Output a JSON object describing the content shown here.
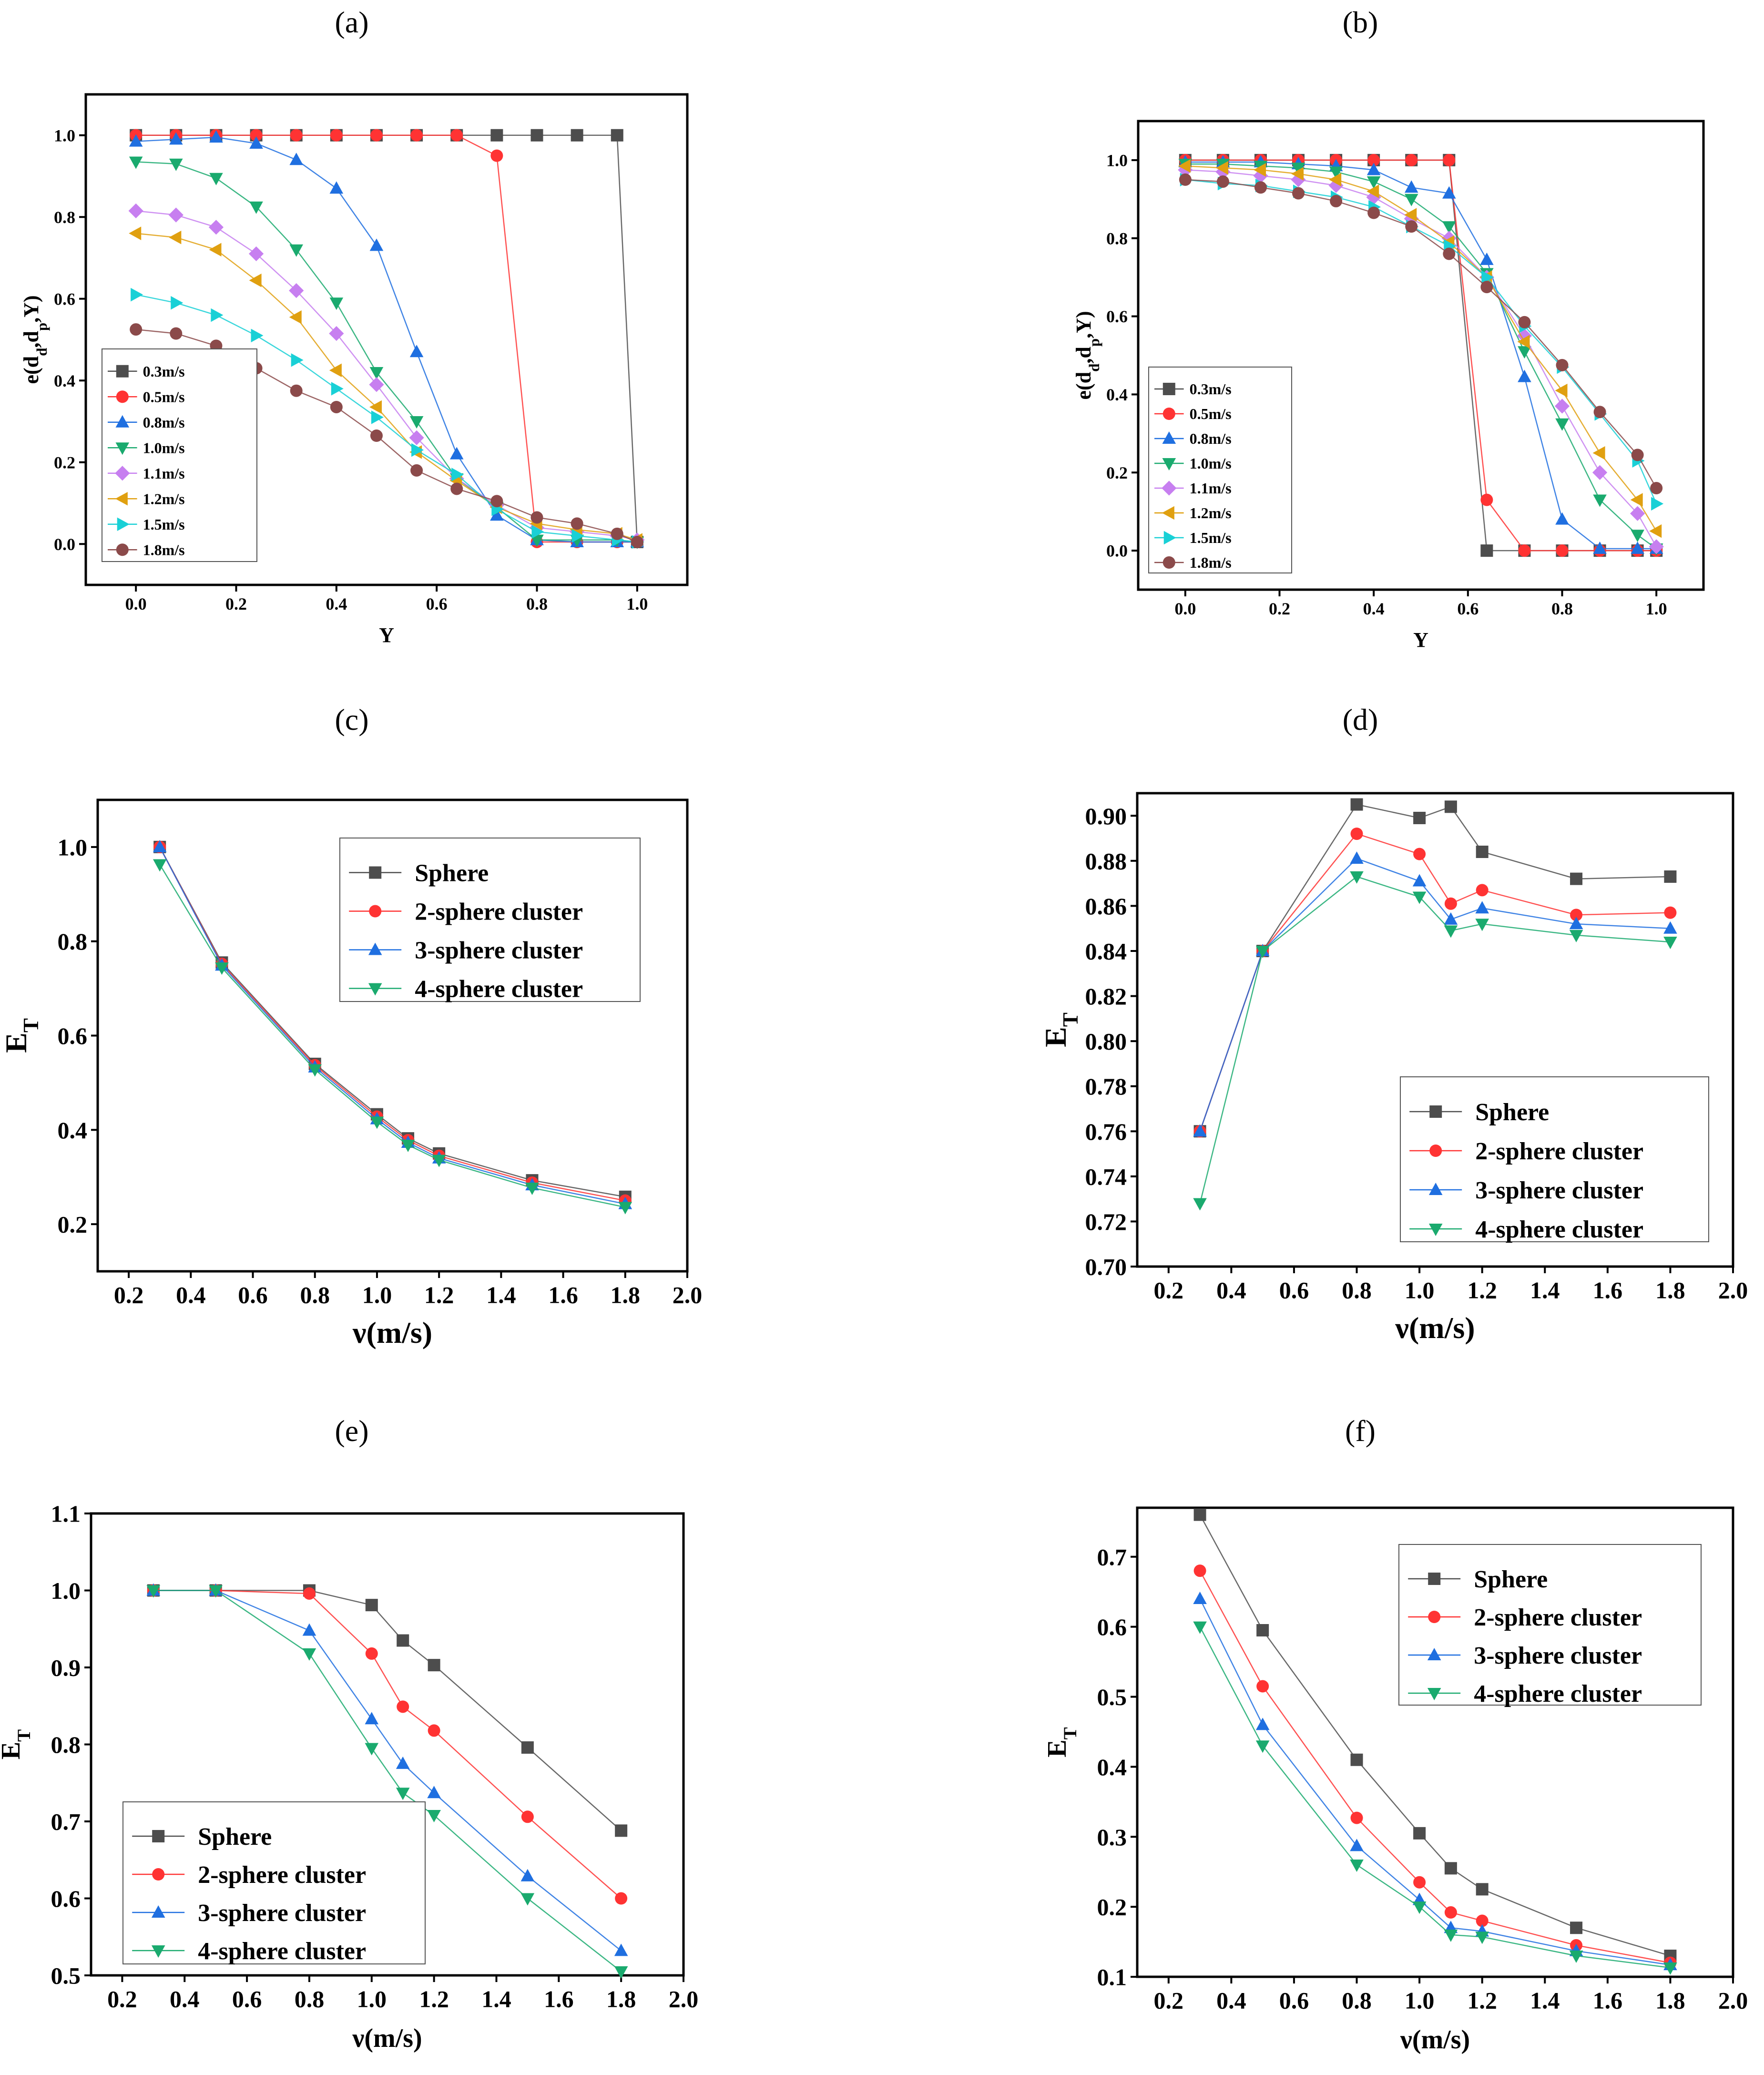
{
  "chart_data": [
    {
      "panel": "(a)",
      "type": "line",
      "xlabel": "Y",
      "ylabel": "e(d_d,d_p,Y)",
      "xlim": [
        -0.1,
        1.1
      ],
      "ylim": [
        -0.1,
        1.1
      ],
      "xticks": [
        "0.0",
        "0.2",
        "0.4",
        "0.6",
        "0.8",
        "1.0"
      ],
      "yticks": [
        "0.0",
        "0.2",
        "0.4",
        "0.6",
        "0.8",
        "1.0"
      ],
      "legend_position": "bottom-left",
      "x": [
        0,
        0.08,
        0.16,
        0.24,
        0.32,
        0.4,
        0.48,
        0.56,
        0.64,
        0.72,
        0.8,
        0.88,
        0.96,
        1.0
      ],
      "series": [
        {
          "name": "0.3m/s",
          "color": "#4d4d4d",
          "marker": "square",
          "values": [
            1,
            1,
            1,
            1,
            1,
            1,
            1,
            1,
            1,
            1,
            1,
            1,
            1,
            0.005
          ]
        },
        {
          "name": "0.5m/s",
          "color": "#ff3333",
          "marker": "circle",
          "values": [
            1,
            1,
            1,
            1,
            1,
            1,
            1,
            1,
            1,
            0.95,
            0.005,
            0.005,
            0.005,
            0.005
          ]
        },
        {
          "name": "0.8m/s",
          "color": "#1f6fe0",
          "marker": "triangle-up",
          "values": [
            0.985,
            0.99,
            0.995,
            0.98,
            0.94,
            0.87,
            0.73,
            0.47,
            0.22,
            0.07,
            0.01,
            0.005,
            0.005,
            0.005
          ]
        },
        {
          "name": "1.0m/s",
          "color": "#1aaa6e",
          "marker": "triangle-down",
          "values": [
            0.935,
            0.93,
            0.895,
            0.825,
            0.72,
            0.59,
            0.42,
            0.3,
            0.16,
            0.09,
            0.01,
            0.01,
            0.01,
            0.005
          ]
        },
        {
          "name": "1.1m/s",
          "color": "#c77ff0",
          "marker": "diamond",
          "values": [
            0.815,
            0.805,
            0.775,
            0.71,
            0.62,
            0.515,
            0.39,
            0.26,
            0.16,
            0.095,
            0.04,
            0.03,
            0.02,
            0.01
          ]
        },
        {
          "name": "1.2m/s",
          "color": "#e0a010",
          "marker": "triangle-left",
          "values": [
            0.76,
            0.75,
            0.72,
            0.645,
            0.555,
            0.425,
            0.335,
            0.225,
            0.155,
            0.09,
            0.05,
            0.035,
            0.025,
            0.01
          ]
        },
        {
          "name": "1.5m/s",
          "color": "#19d0d6",
          "marker": "triangle-right",
          "values": [
            0.61,
            0.59,
            0.56,
            0.51,
            0.45,
            0.38,
            0.31,
            0.23,
            0.17,
            0.085,
            0.03,
            0.02,
            0.01,
            0.005
          ]
        },
        {
          "name": "1.8m/s",
          "color": "#8b4a4a",
          "marker": "circle",
          "values": [
            0.525,
            0.515,
            0.485,
            0.43,
            0.375,
            0.335,
            0.265,
            0.18,
            0.135,
            0.105,
            0.065,
            0.05,
            0.025,
            0.005
          ]
        }
      ]
    },
    {
      "panel": "(b)",
      "type": "line",
      "xlabel": "Y",
      "ylabel": "e(d_d,d_p,Y)",
      "xlim": [
        -0.1,
        1.1
      ],
      "ylim": [
        -0.1,
        1.1
      ],
      "xticks": [
        "0.0",
        "0.2",
        "0.4",
        "0.6",
        "0.8",
        "1.0"
      ],
      "yticks": [
        "0.0",
        "0.2",
        "0.4",
        "0.6",
        "0.8",
        "1.0"
      ],
      "legend_position": "bottom-left",
      "x": [
        0,
        0.08,
        0.16,
        0.24,
        0.32,
        0.4,
        0.48,
        0.56,
        0.64,
        0.72,
        0.8,
        0.88,
        0.96,
        1.0
      ],
      "series": [
        {
          "name": "0.3m/s",
          "color": "#4d4d4d",
          "marker": "square",
          "values": [
            1,
            1,
            1,
            1,
            1,
            1,
            1,
            1,
            0,
            0,
            0,
            0,
            0,
            0
          ]
        },
        {
          "name": "0.5m/s",
          "color": "#ff3333",
          "marker": "circle",
          "values": [
            1,
            1,
            1,
            1,
            1,
            1,
            1,
            1,
            0.13,
            0,
            0,
            0,
            0,
            0
          ]
        },
        {
          "name": "0.8m/s",
          "color": "#1f6fe0",
          "marker": "triangle-up",
          "values": [
            0.995,
            0.995,
            0.995,
            0.99,
            0.985,
            0.975,
            0.93,
            0.915,
            0.745,
            0.445,
            0.08,
            0.005,
            0.005,
            0.005
          ]
        },
        {
          "name": "1.0m/s",
          "color": "#1aaa6e",
          "marker": "triangle-down",
          "values": [
            0.99,
            0.99,
            0.985,
            0.98,
            0.97,
            0.945,
            0.9,
            0.83,
            0.71,
            0.51,
            0.325,
            0.13,
            0.04,
            0.005
          ]
        },
        {
          "name": "1.1m/s",
          "color": "#c77ff0",
          "marker": "diamond",
          "values": [
            0.975,
            0.97,
            0.96,
            0.95,
            0.935,
            0.905,
            0.85,
            0.8,
            0.7,
            0.55,
            0.37,
            0.2,
            0.095,
            0.01
          ]
        },
        {
          "name": "1.2m/s",
          "color": "#e0a010",
          "marker": "triangle-left",
          "values": [
            0.985,
            0.98,
            0.975,
            0.965,
            0.95,
            0.92,
            0.86,
            0.79,
            0.7,
            0.535,
            0.41,
            0.25,
            0.13,
            0.05
          ]
        },
        {
          "name": "1.5m/s",
          "color": "#19d0d6",
          "marker": "triangle-right",
          "values": [
            0.95,
            0.94,
            0.935,
            0.92,
            0.905,
            0.88,
            0.83,
            0.78,
            0.7,
            0.575,
            0.47,
            0.35,
            0.23,
            0.12
          ]
        },
        {
          "name": "1.8m/s",
          "color": "#8b4a4a",
          "marker": "circle",
          "values": [
            0.95,
            0.945,
            0.93,
            0.915,
            0.895,
            0.865,
            0.83,
            0.76,
            0.675,
            0.585,
            0.475,
            0.355,
            0.245,
            0.16
          ]
        }
      ]
    },
    {
      "panel": "(c)",
      "type": "line",
      "xlabel": "ν(m/s)",
      "ylabel": "E_T",
      "xlim": [
        0.1,
        2.0
      ],
      "ylim": [
        0.1,
        1.1
      ],
      "xticks": [
        "0.2",
        "0.4",
        "0.6",
        "0.8",
        "1.0",
        "1.2",
        "1.4",
        "1.6",
        "1.8",
        "2.0"
      ],
      "yticks": [
        "0.2",
        "0.4",
        "0.6",
        "0.8",
        "1.0"
      ],
      "legend_position": "top-right",
      "x": [
        0.3,
        0.5,
        0.8,
        1.0,
        1.1,
        1.2,
        1.5,
        1.8
      ],
      "series": [
        {
          "name": "Sphere",
          "color": "#4d4d4d",
          "marker": "square",
          "values": [
            1.0,
            0.755,
            0.54,
            0.433,
            0.382,
            0.35,
            0.293,
            0.258
          ]
        },
        {
          "name": "2-sphere cluster",
          "color": "#ff3333",
          "marker": "circle",
          "values": [
            1.0,
            0.752,
            0.537,
            0.428,
            0.378,
            0.345,
            0.288,
            0.25
          ]
        },
        {
          "name": "3-sphere cluster",
          "color": "#1f6fe0",
          "marker": "triangle-up",
          "values": [
            1.0,
            0.749,
            0.533,
            0.423,
            0.373,
            0.34,
            0.283,
            0.243
          ]
        },
        {
          "name": "4-sphere cluster",
          "color": "#1aaa6e",
          "marker": "triangle-down",
          "values": [
            0.963,
            0.744,
            0.528,
            0.417,
            0.368,
            0.336,
            0.277,
            0.236
          ]
        }
      ]
    },
    {
      "panel": "(d)",
      "type": "line",
      "xlabel": "ν(m/s)",
      "ylabel": "E_T",
      "xlim": [
        0.1,
        2.0
      ],
      "ylim": [
        0.7,
        0.91
      ],
      "xticks": [
        "0.2",
        "0.4",
        "0.6",
        "0.8",
        "1.0",
        "1.2",
        "1.4",
        "1.6",
        "1.8",
        "2.0"
      ],
      "yticks": [
        "0.70",
        "0.72",
        "0.74",
        "0.76",
        "0.78",
        "0.80",
        "0.82",
        "0.84",
        "0.86",
        "0.88",
        "0.90"
      ],
      "legend_position": "bottom-right",
      "x": [
        0.3,
        0.5,
        0.8,
        1.0,
        1.1,
        1.2,
        1.5,
        1.8
      ],
      "series": [
        {
          "name": "Sphere",
          "color": "#4d4d4d",
          "marker": "square",
          "values": [
            0.76,
            0.84,
            0.905,
            0.899,
            0.904,
            0.884,
            0.872,
            0.873
          ]
        },
        {
          "name": "2-sphere cluster",
          "color": "#ff3333",
          "marker": "circle",
          "values": [
            0.76,
            0.84,
            0.892,
            0.883,
            0.861,
            0.867,
            0.856,
            0.857
          ]
        },
        {
          "name": "3-sphere cluster",
          "color": "#1f6fe0",
          "marker": "triangle-up",
          "values": [
            0.76,
            0.84,
            0.881,
            0.871,
            0.854,
            0.859,
            0.852,
            0.85
          ]
        },
        {
          "name": "4-sphere cluster",
          "color": "#1aaa6e",
          "marker": "triangle-down",
          "values": [
            0.728,
            0.84,
            0.873,
            0.864,
            0.849,
            0.852,
            0.847,
            0.844
          ]
        }
      ]
    },
    {
      "panel": "(e)",
      "type": "line",
      "xlabel": "ν(m/s)",
      "ylabel": "E_T",
      "xlim": [
        0.1,
        2.0
      ],
      "ylim": [
        0.5,
        1.1
      ],
      "xticks": [
        "0.2",
        "0.4",
        "0.6",
        "0.8",
        "1.0",
        "1.2",
        "1.4",
        "1.6",
        "1.8",
        "2.0"
      ],
      "yticks": [
        "0.5",
        "0.6",
        "0.7",
        "0.8",
        "0.9",
        "1.0",
        "1.1"
      ],
      "legend_position": "bottom-left",
      "x": [
        0.3,
        0.5,
        0.8,
        1.0,
        1.1,
        1.2,
        1.5,
        1.8
      ],
      "series": [
        {
          "name": "Sphere",
          "color": "#4d4d4d",
          "marker": "square",
          "values": [
            1.0,
            1.0,
            1.0,
            0.981,
            0.935,
            0.903,
            0.796,
            0.688
          ]
        },
        {
          "name": "2-sphere cluster",
          "color": "#ff3333",
          "marker": "circle",
          "values": [
            1.0,
            1.0,
            0.996,
            0.918,
            0.849,
            0.818,
            0.706,
            0.6
          ]
        },
        {
          "name": "3-sphere cluster",
          "color": "#1f6fe0",
          "marker": "triangle-up",
          "values": [
            1.0,
            1.0,
            0.948,
            0.833,
            0.775,
            0.737,
            0.629,
            0.532
          ]
        },
        {
          "name": "4-sphere cluster",
          "color": "#1aaa6e",
          "marker": "triangle-down",
          "values": [
            1.0,
            1.0,
            0.918,
            0.795,
            0.737,
            0.708,
            0.6,
            0.505
          ]
        }
      ]
    },
    {
      "panel": "(f)",
      "type": "line",
      "xlabel": "ν(m/s)",
      "ylabel": "E_T",
      "xlim": [
        0.1,
        2.0
      ],
      "ylim": [
        0.1,
        0.77
      ],
      "xticks": [
        "0.2",
        "0.4",
        "0.6",
        "0.8",
        "1.0",
        "1.2",
        "1.4",
        "1.6",
        "1.8",
        "2.0"
      ],
      "yticks": [
        "0.1",
        "0.2",
        "0.3",
        "0.4",
        "0.5",
        "0.6",
        "0.7"
      ],
      "legend_position": "top-right",
      "x": [
        0.3,
        0.5,
        0.8,
        1.0,
        1.1,
        1.2,
        1.5,
        1.8
      ],
      "series": [
        {
          "name": "Sphere",
          "color": "#4d4d4d",
          "marker": "square",
          "values": [
            0.76,
            0.595,
            0.41,
            0.305,
            0.255,
            0.225,
            0.17,
            0.13
          ]
        },
        {
          "name": "2-sphere cluster",
          "color": "#ff3333",
          "marker": "circle",
          "values": [
            0.68,
            0.515,
            0.327,
            0.235,
            0.192,
            0.18,
            0.145,
            0.12
          ]
        },
        {
          "name": "3-sphere cluster",
          "color": "#1f6fe0",
          "marker": "triangle-up",
          "values": [
            0.64,
            0.46,
            0.287,
            0.21,
            0.17,
            0.165,
            0.137,
            0.117
          ]
        },
        {
          "name": "4-sphere cluster",
          "color": "#1aaa6e",
          "marker": "triangle-down",
          "values": [
            0.6,
            0.43,
            0.26,
            0.2,
            0.16,
            0.157,
            0.13,
            0.113
          ]
        }
      ]
    }
  ]
}
